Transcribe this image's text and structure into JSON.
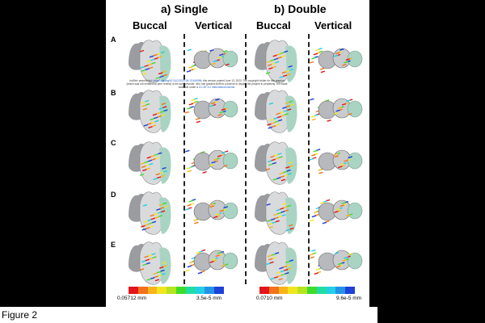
{
  "panel_a_title": "a) Single",
  "panel_b_title": "b) Double",
  "col_headers": [
    "Buccal",
    "Vertical",
    "Buccal",
    "Vertical"
  ],
  "row_labels": [
    "A",
    "B",
    "C",
    "D",
    "E"
  ],
  "overlay_note": {
    "line1_pre": "bioRxiv preprint doi: ",
    "line1_link": "https://doi.org/10.1101/2023.06.13.544596",
    "line1_post": "; this version posted June 13, 2023. The copyright holder for this preprint",
    "line2": "(which was not certified by peer review) is the author/funder, who has granted bioRxiv a license to display the preprint in perpetuity. It is made",
    "line3_pre": "available under a ",
    "line3_link": "CC-BY 4.0 International license",
    "line3_post": "."
  },
  "scales": [
    {
      "max_label": "0.05712 mm",
      "min_label": "3.5e-5 mm"
    },
    {
      "max_label": "0.0710 mm",
      "min_label": "9.6e-5 mm"
    }
  ],
  "scale_colors": [
    "#e3161b",
    "#f2731b",
    "#f9b41a",
    "#f1e61d",
    "#b6e31f",
    "#3fdb2d",
    "#22dca6",
    "#22cfe6",
    "#2393e8",
    "#1e41d8"
  ],
  "figure_caption": "Figure 2"
}
